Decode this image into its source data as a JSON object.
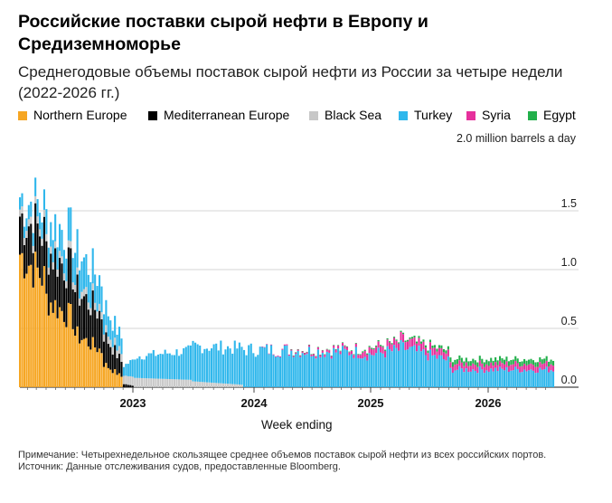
{
  "title": "Российские поставки сырой нефти в Европу и Средиземноморье",
  "subtitle": "Среднегодовые объемы поставок сырой нефти из России за четыре недели (2022-2026 гг.)",
  "unit_label": "2.0 million barrels a day",
  "footer": {
    "note": "Примечание: Четырехнедельное скользящее среднее объемов поставок сырой нефти из всех российских портов.",
    "source": "Источник: Данные отслеживания судов, предоставленные Bloomberg."
  },
  "legend": [
    {
      "name": "Northern Europe",
      "color": "#f6a623"
    },
    {
      "name": "Mediterranean Europe",
      "color": "#000000"
    },
    {
      "name": "Black Sea",
      "color": "#c8c8c8"
    },
    {
      "name": "Turkey",
      "color": "#2fb7ec"
    },
    {
      "name": "Syria",
      "color": "#e6309c"
    },
    {
      "name": "Egypt",
      "color": "#22b04b"
    }
  ],
  "chart_data": {
    "type": "bar",
    "stacked": true,
    "xlabel": "Week ending",
    "ylabel": "",
    "ylim": [
      0,
      2.0
    ],
    "yticks": [
      "0.0",
      "0.5",
      "1.0",
      "1.5"
    ],
    "x_ticks": [
      "2023",
      "2024",
      "2025",
      "2026"
    ],
    "grid": true,
    "series_order": [
      "Northern Europe",
      "Mediterranean Europe",
      "Black Sea",
      "Turkey",
      "Syria",
      "Egypt"
    ],
    "segments": [
      {
        "from": "2022-01",
        "to": "2022-04",
        "Northern Europe": 1.15,
        "Mediterranean Europe": 0.32,
        "Black Sea": 0.06,
        "Turkey": 0.1,
        "Syria": 0,
        "Egypt": 0
      },
      {
        "from": "2022-04",
        "to": "2022-07",
        "Northern Europe": 0.75,
        "Mediterranean Europe": 0.42,
        "Black Sea": 0.06,
        "Turkey": 0.2,
        "Syria": 0,
        "Egypt": 0
      },
      {
        "from": "2022-07",
        "to": "2022-10",
        "Northern Europe": 0.45,
        "Mediterranean Europe": 0.38,
        "Black Sea": 0.06,
        "Turkey": 0.28,
        "Syria": 0,
        "Egypt": 0
      },
      {
        "from": "2022-10",
        "to": "2022-12",
        "Northern Europe": 0.2,
        "Mediterranean Europe": 0.25,
        "Black Sea": 0.06,
        "Turkey": 0.2,
        "Syria": 0,
        "Egypt": 0
      },
      {
        "from": "2022-12",
        "to": "2023-01",
        "Northern Europe": 0,
        "Mediterranean Europe": 0.03,
        "Black Sea": 0.07,
        "Turkey": 0.08,
        "Syria": 0,
        "Egypt": 0
      },
      {
        "from": "2023-01",
        "to": "2023-07",
        "Northern Europe": 0,
        "Mediterranean Europe": 0,
        "Black Sea": 0.08,
        "Turkey": 0.18,
        "Syria": 0,
        "Egypt": 0
      },
      {
        "from": "2023-07",
        "to": "2023-12",
        "Northern Europe": 0,
        "Mediterranean Europe": 0,
        "Black Sea": 0.05,
        "Turkey": 0.3,
        "Syria": 0,
        "Egypt": 0
      },
      {
        "from": "2024-01",
        "to": "2024-12",
        "Northern Europe": 0,
        "Mediterranean Europe": 0,
        "Black Sea": 0.0,
        "Turkey": 0.32,
        "Syria": 0,
        "Egypt": 0
      },
      {
        "from": "2025-01",
        "to": "2025-04",
        "Northern Europe": 0,
        "Mediterranean Europe": 0,
        "Black Sea": 0.0,
        "Turkey": 0.28,
        "Syria": 0.05,
        "Egypt": 0.01
      },
      {
        "from": "2025-04",
        "to": "2025-09",
        "Northern Europe": 0,
        "Mediterranean Europe": 0,
        "Black Sea": 0.0,
        "Turkey": 0.34,
        "Syria": 0.07,
        "Egypt": 0.01
      },
      {
        "from": "2025-10",
        "to": "2026-07",
        "Northern Europe": 0,
        "Mediterranean Europe": 0,
        "Black Sea": 0.0,
        "Turkey": 0.15,
        "Syria": 0.05,
        "Egypt": 0.04
      }
    ]
  }
}
